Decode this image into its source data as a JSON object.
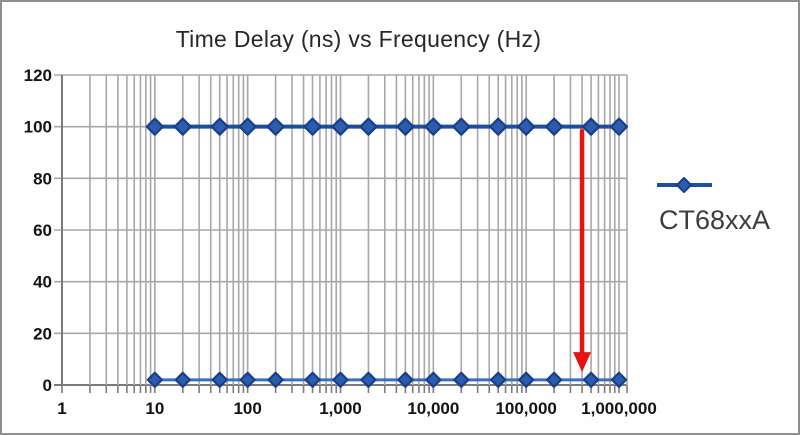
{
  "chart_data": {
    "type": "line",
    "title": "Time Delay (ns) vs Frequency (Hz)",
    "legend": {
      "label": "CT68xxA",
      "position": "right-center"
    },
    "x_scale": "log",
    "xlim": [
      1,
      1000000
    ],
    "ylim": [
      0,
      120
    ],
    "x_tick_labels": [
      "1",
      "10",
      "100",
      "1,000",
      "10,000",
      "100,000",
      "1,000,000"
    ],
    "x_tick_values": [
      1,
      10,
      100,
      1000,
      10000,
      100000,
      1000000
    ],
    "y_tick_values": [
      0,
      20,
      40,
      60,
      80,
      100,
      120
    ],
    "x": [
      10,
      20,
      50,
      100,
      200,
      500,
      1000,
      2000,
      5000,
      10000,
      20000,
      50000,
      100000,
      200000,
      500000,
      1000000
    ],
    "series": [
      {
        "name": "CT68xxA",
        "role": "upper-line",
        "values": [
          100,
          100,
          100,
          100,
          100,
          100,
          100,
          100,
          100,
          100,
          100,
          100,
          100,
          100,
          100,
          100
        ],
        "color": "#1d4fa1",
        "marker_fill": "#2e5cad",
        "marker_stroke": "#16408c",
        "line_width": 4,
        "marker_size": 16
      },
      {
        "name": "CT68xxA",
        "role": "lower-line",
        "values": [
          2,
          2,
          2,
          2,
          2,
          2,
          2,
          2,
          2,
          2,
          2,
          2,
          2,
          2,
          2,
          2
        ],
        "color": "#3a6fc0",
        "marker_fill": "#2e5cad",
        "marker_stroke": "#16408c",
        "line_width": 3,
        "marker_size": 14
      }
    ],
    "annotation": {
      "type": "down-arrow",
      "x": 400000,
      "from_y": 99,
      "to_y": 5,
      "color": "#e41412"
    },
    "grid": {
      "color": "#a8a8a8",
      "axis_color": "#7b7b7b",
      "horizontal": true,
      "vertical_log_minors": [
        2,
        3,
        4,
        5,
        6,
        7,
        8,
        9
      ]
    }
  }
}
